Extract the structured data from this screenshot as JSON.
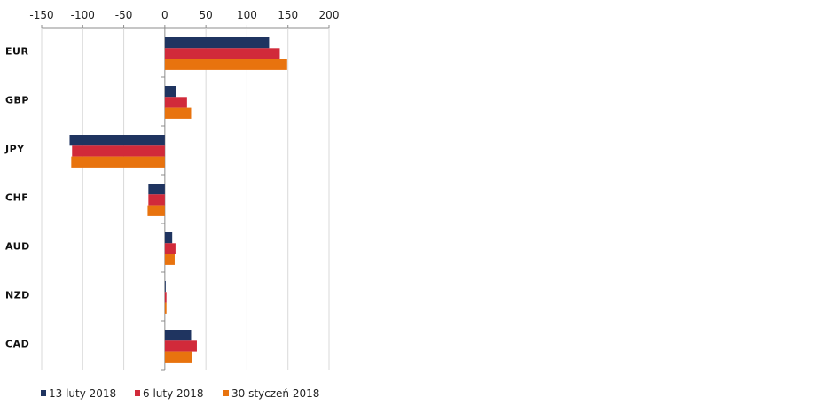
{
  "chart_data": {
    "type": "bar",
    "orientation": "horizontal",
    "categories": [
      "EUR",
      "GBP",
      "JPY",
      "CHF",
      "AUD",
      "NZD",
      "CAD"
    ],
    "series": [
      {
        "name": "13 luty 2018",
        "color": "#1f3460",
        "values": [
          127,
          14,
          -116,
          -20,
          9,
          1,
          32
        ]
      },
      {
        "name": "6 luty 2018",
        "color": "#d12a3a",
        "values": [
          140,
          27,
          -113,
          -20,
          13,
          2,
          39
        ]
      },
      {
        "name": "30 styczeń 2018",
        "color": "#e8730e",
        "values": [
          149,
          32,
          -114,
          -21,
          12,
          2,
          33
        ]
      }
    ],
    "xlim": [
      -150,
      200
    ],
    "xticks": [
      -150,
      -100,
      -50,
      0,
      50,
      100,
      150,
      200
    ],
    "xaxis_position": "top",
    "grid": true,
    "legend_position": "bottom"
  }
}
